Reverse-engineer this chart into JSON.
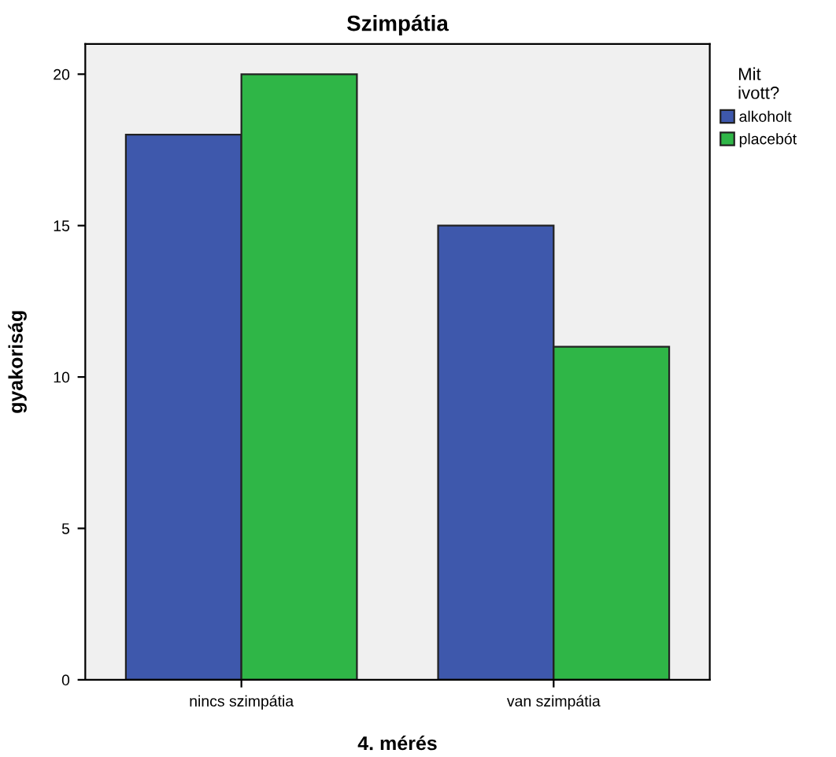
{
  "chart_data": {
    "type": "bar",
    "title": "Szimpátia",
    "xlabel": "4. mérés",
    "ylabel": "gyakoriság",
    "legend_title": "Mit\nivott?",
    "categories": [
      "nincs szimpátia",
      "van szimpátia"
    ],
    "series": [
      {
        "name": "alkoholt",
        "color": "#3e58ac",
        "values": [
          18,
          15
        ]
      },
      {
        "name": "placebót",
        "color": "#2fb647",
        "values": [
          20,
          11
        ]
      }
    ],
    "ylim": [
      0,
      21
    ],
    "yticks": [
      0,
      5,
      10,
      15,
      20
    ],
    "grid": false,
    "legend": "top right"
  }
}
